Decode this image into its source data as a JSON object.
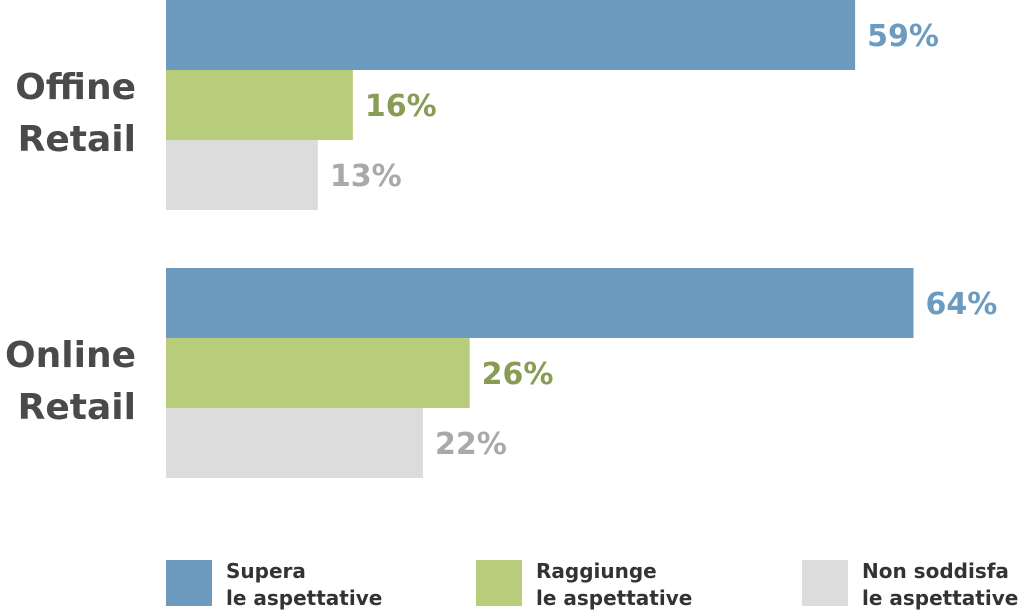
{
  "chart_data": {
    "type": "bar",
    "orientation": "horizontal",
    "categories": [
      {
        "lines": [
          "Offine",
          "Retail"
        ]
      },
      {
        "lines": [
          "Online",
          "Retail"
        ]
      }
    ],
    "series": [
      {
        "name_lines": [
          "Supera",
          "le aspettative"
        ],
        "color": "#6c9bbf",
        "label_color": "#6c9bbf",
        "values": [
          59,
          64
        ],
        "labels": [
          "59%",
          "64%"
        ]
      },
      {
        "name_lines": [
          "Raggiunge",
          "le aspettative"
        ],
        "color": "#b8cd7c",
        "label_color": "#889c53",
        "values": [
          16,
          26
        ],
        "labels": [
          "16%",
          "26%"
        ]
      },
      {
        "name_lines": [
          "Non soddisfa",
          "le aspettative"
        ],
        "color": "#dcdcdc",
        "label_color": "#a9a9a9",
        "values": [
          13,
          22
        ],
        "labels": [
          "13%",
          "22%"
        ]
      }
    ],
    "xlim": [
      0,
      100
    ],
    "grid": false,
    "legend_position": "bottom"
  }
}
